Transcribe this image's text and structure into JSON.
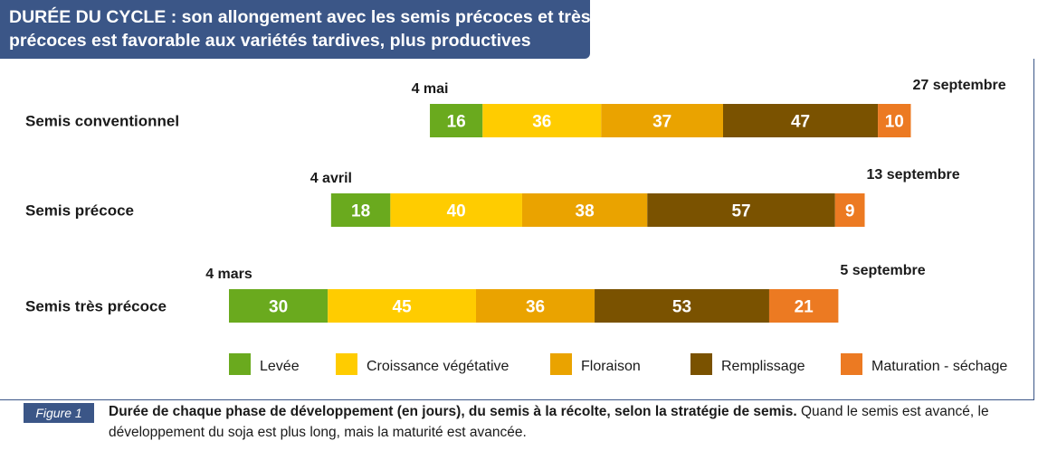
{
  "title": {
    "line1": "DURÉE DU CYCLE : son allongement avec les semis précoces et très",
    "line2": "précoces est favorable aux variétés tardives, plus productives"
  },
  "chart_data": {
    "type": "bar",
    "orientation": "horizontal",
    "stacked": true,
    "unit": "jours",
    "phases": [
      {
        "name": "Levée",
        "color": "#6aaa1e"
      },
      {
        "name": "Croissance végétative",
        "color": "#ffcc00"
      },
      {
        "name": "Floraison",
        "color": "#eaa300"
      },
      {
        "name": "Remplissage",
        "color": "#7a5200"
      },
      {
        "name": "Maturation - séchage",
        "color": "#ec7a22"
      }
    ],
    "rows": [
      {
        "label": "Semis conventionnel",
        "start_label": "4 mai",
        "end_label": "27 septembre",
        "start_day": 61,
        "values": [
          16,
          36,
          37,
          47,
          10
        ]
      },
      {
        "label": "Semis précoce",
        "start_label": "4 avril",
        "end_label": "13 septembre",
        "start_day": 31,
        "values": [
          18,
          40,
          38,
          57,
          9
        ]
      },
      {
        "label": "Semis très précoce",
        "start_label": "4 mars",
        "end_label": "5 septembre",
        "start_day": 0,
        "values": [
          30,
          45,
          36,
          53,
          21
        ]
      }
    ],
    "legend_position": "bottom",
    "grid": false
  },
  "caption": {
    "figure_label": "Figure 1",
    "bold_text": "Durée de chaque phase de développement (en jours), du semis à la récolte, selon la stratégie de semis.",
    "text": "Quand le semis est avancé, le développement du soja est plus long, mais la maturité est avancée."
  }
}
